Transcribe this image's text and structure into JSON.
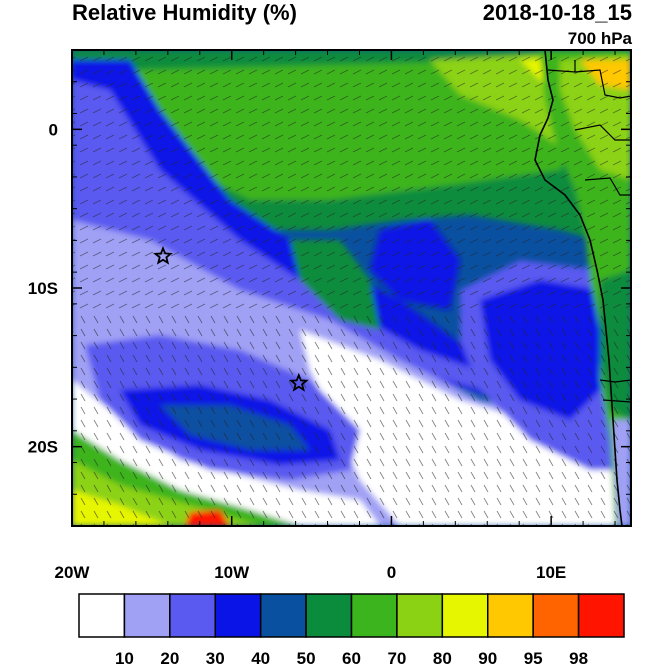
{
  "header": {
    "title": "Relative Humidity (%)",
    "datetime": "2018-10-18_15",
    "level": "700 hPa"
  },
  "axes": {
    "x_ticks": [
      {
        "lon": -20,
        "label": "20W"
      },
      {
        "lon": -10,
        "label": "10W"
      },
      {
        "lon": 0,
        "label": "0"
      },
      {
        "lon": 10,
        "label": "10E"
      }
    ],
    "y_ticks": [
      {
        "lat": 0,
        "label": "0"
      },
      {
        "lat": -10,
        "label": "10S"
      },
      {
        "lat": -20,
        "label": "20S"
      }
    ],
    "lon_range": [
      -20,
      15
    ],
    "lat_range": [
      -25,
      5
    ]
  },
  "colorbar": {
    "colors": [
      "#ffffff",
      "#a0a0f5",
      "#5a5af0",
      "#0a14e6",
      "#0a50a0",
      "#0a8c3c",
      "#3cb41e",
      "#8cd214",
      "#e6f500",
      "#ffc800",
      "#ff6400",
      "#ff1400"
    ],
    "labels": [
      "10",
      "20",
      "30",
      "40",
      "50",
      "60",
      "70",
      "80",
      "90",
      "95",
      "98"
    ]
  },
  "markers": [
    {
      "name": "star-marker-1",
      "lon": -14.3,
      "lat": -8
    },
    {
      "name": "star-marker-2",
      "lon": -5.8,
      "lat": -16
    }
  ]
}
